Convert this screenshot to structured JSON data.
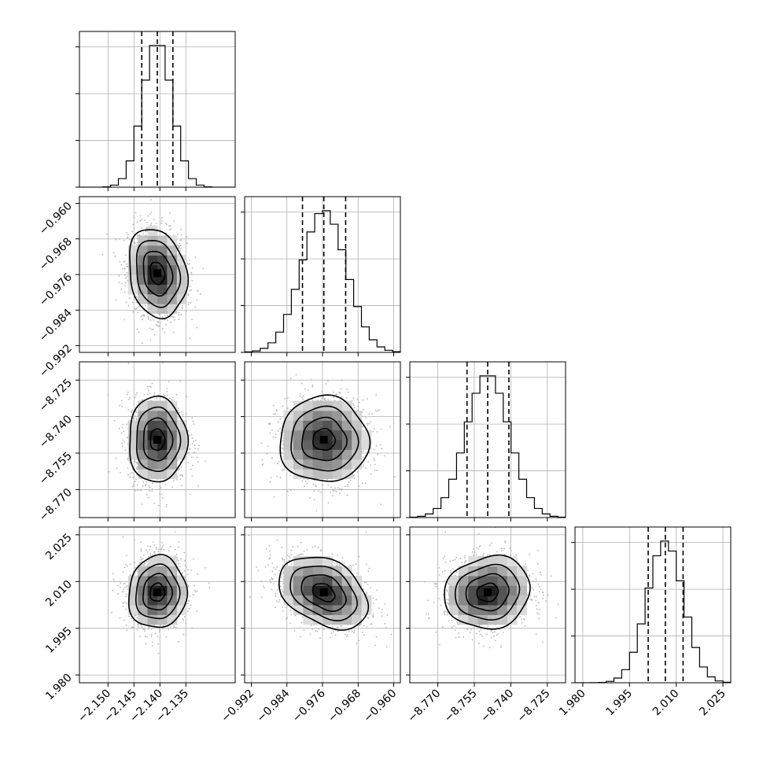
{
  "chart_data": {
    "type": "corner",
    "parameters": [
      {
        "center": -2.1405,
        "sigma": 0.0028,
        "range": [
          -2.1555,
          -2.1255
        ],
        "ticks": [
          -2.15,
          -2.145,
          -2.14,
          -2.135
        ],
        "tick_labels": [
          "−2.150",
          "−2.145",
          "−2.140",
          "−2.135"
        ],
        "quantiles": [
          -2.1435,
          -2.1405,
          -2.1375
        ],
        "hist_peak": 1.0
      },
      {
        "center": -0.9757,
        "sigma": 0.005,
        "range": [
          -0.9935,
          -0.9585
        ],
        "ticks": [
          -0.992,
          -0.984,
          -0.976,
          -0.968,
          -0.96
        ],
        "tick_labels": [
          "−0.992",
          "−0.984",
          "−0.976",
          "−0.968",
          "−0.960"
        ],
        "quantiles": [
          -0.9805,
          -0.9757,
          -0.9708
        ],
        "hist_peak": 1.0
      },
      {
        "center": -8.7495,
        "sigma": 0.0088,
        "range": [
          -8.7815,
          -8.7175
        ],
        "ticks": [
          -8.77,
          -8.755,
          -8.74,
          -8.725
        ],
        "tick_labels": [
          "−8.770",
          "−8.755",
          "−8.740",
          "−8.725"
        ],
        "quantiles": [
          -8.758,
          -8.7495,
          -8.7408
        ],
        "hist_peak": 1.0
      },
      {
        "center": 2.0065,
        "sigma": 0.0058,
        "range": [
          1.9775,
          2.0275
        ],
        "ticks": [
          1.98,
          1.995,
          2.01,
          2.025
        ],
        "tick_labels": [
          "1.980",
          "1.995",
          "2.010",
          "2.025"
        ],
        "quantiles": [
          2.001,
          2.0065,
          2.0122
        ],
        "hist_peak": 1.0
      }
    ],
    "hist_bins": 20,
    "hist_y_ticks": [
      0.0,
      0.33,
      0.66,
      0.99
    ],
    "correlations": [
      {
        "i": 1,
        "j": 0,
        "rho": -0.18
      },
      {
        "i": 2,
        "j": 0,
        "rho": 0.0
      },
      {
        "i": 2,
        "j": 1,
        "rho": 0.0
      },
      {
        "i": 3,
        "j": 0,
        "rho": 0.05
      },
      {
        "i": 3,
        "j": 1,
        "rho": -0.35
      },
      {
        "i": 3,
        "j": 2,
        "rho": 0.1
      }
    ],
    "contour_levels_sigma": [
      0.5,
      1.0,
      1.5,
      2.0
    ],
    "grid": true,
    "colors": {
      "hist": "#000000",
      "scatter": "#b5b5b5",
      "density_dark": "#000000",
      "density_light": "#ffffff"
    }
  }
}
